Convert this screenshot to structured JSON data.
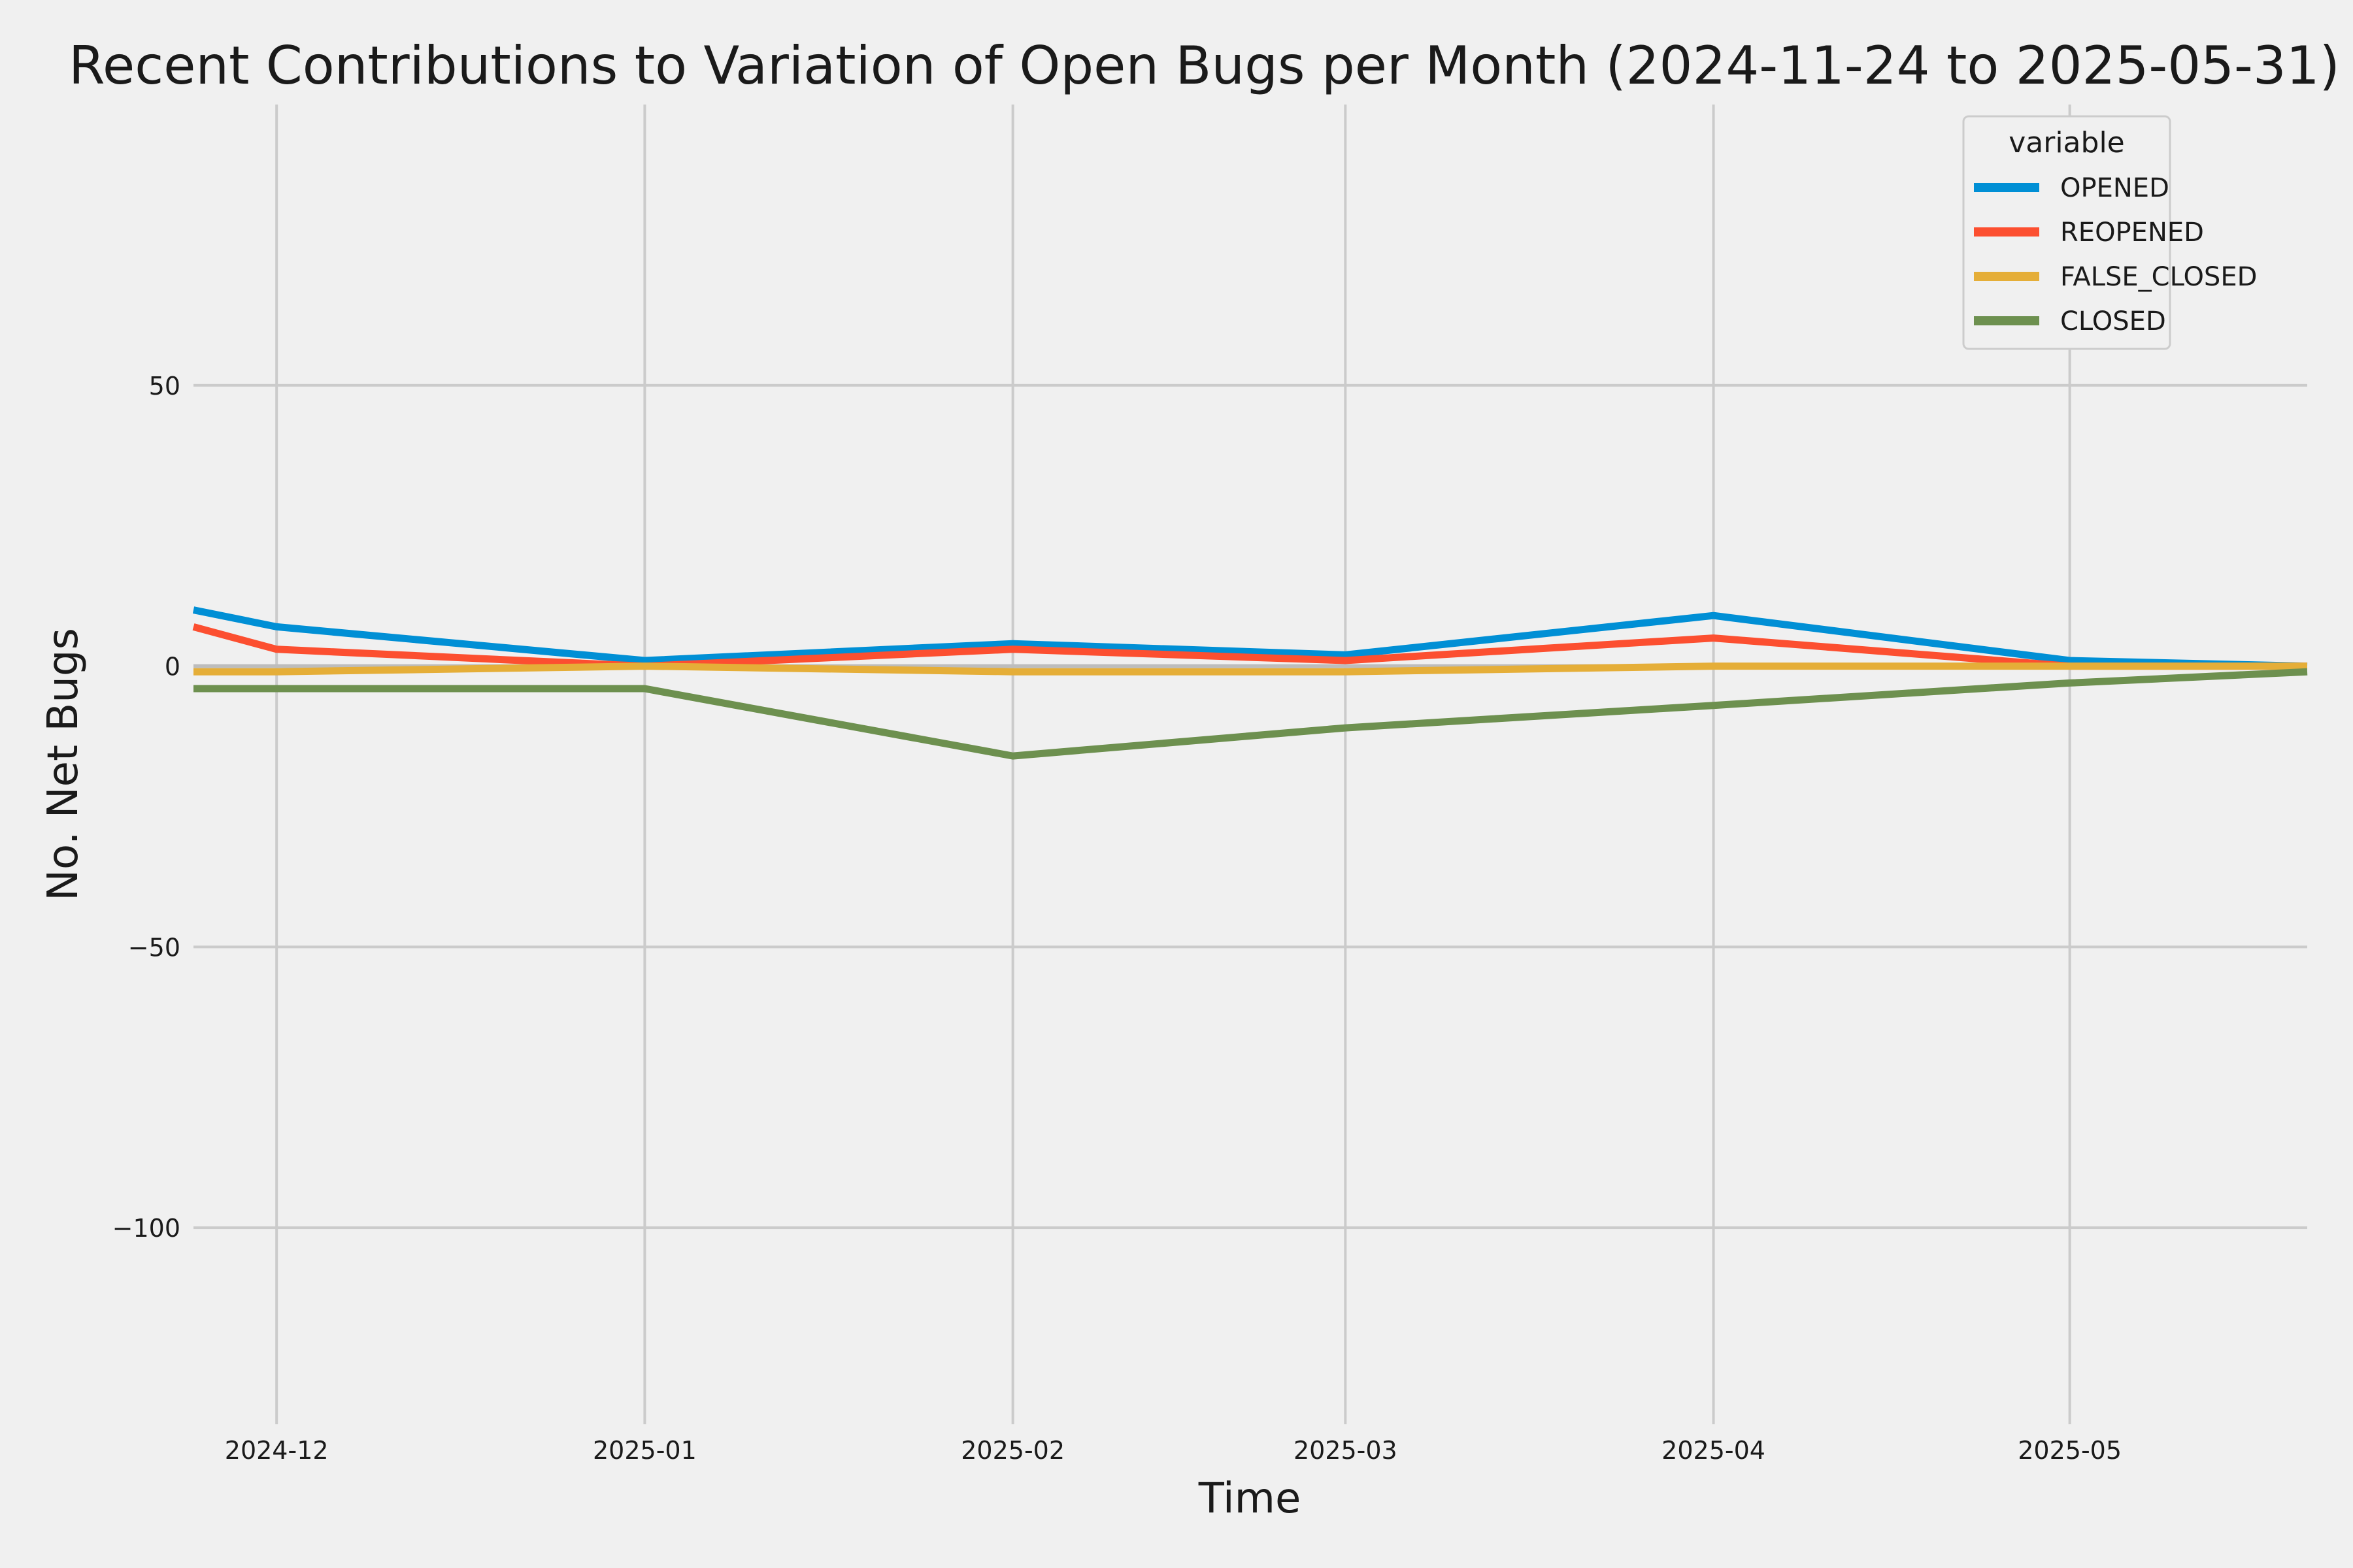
{
  "chart_data": {
    "type": "line",
    "title": "Recent Contributions to Variation of Open Bugs per Month (2024-11-24 to 2025-05-31)",
    "xlabel": "Time",
    "ylabel": "No. Net Bugs",
    "x_ticks": [
      "2024-12",
      "2025-01",
      "2025-02",
      "2025-03",
      "2025-04",
      "2025-05"
    ],
    "y_ticks": [
      50,
      0,
      -50,
      -100
    ],
    "y_tick_labels": [
      "50",
      "0",
      "−50",
      "−100"
    ],
    "xlim": [
      "2024-11-24",
      "2025-05-21"
    ],
    "ylim": [
      -135,
      100
    ],
    "grid": true,
    "legend": {
      "title": "variable",
      "position": "top-right"
    },
    "x": [
      "2024-11-24",
      "2024-12-01",
      "2025-01-01",
      "2025-02-01",
      "2025-03-01",
      "2025-04-01",
      "2025-05-01",
      "2025-05-21"
    ],
    "series": [
      {
        "name": "OPENED",
        "color": "#008fd5",
        "values": [
          10,
          7,
          1,
          4,
          2,
          9,
          1,
          0
        ]
      },
      {
        "name": "REOPENED",
        "color": "#fc4f30",
        "values": [
          7,
          3,
          0,
          3,
          1,
          5,
          0,
          0
        ]
      },
      {
        "name": "FALSE_CLOSED",
        "color": "#e5ae38",
        "values": [
          -1,
          -1,
          0,
          -1,
          -1,
          0,
          0,
          0
        ]
      },
      {
        "name": "CLOSED",
        "color": "#6d904f",
        "values": [
          -4,
          -4,
          -4,
          -16,
          -11,
          -7,
          -3,
          -1
        ]
      }
    ]
  }
}
